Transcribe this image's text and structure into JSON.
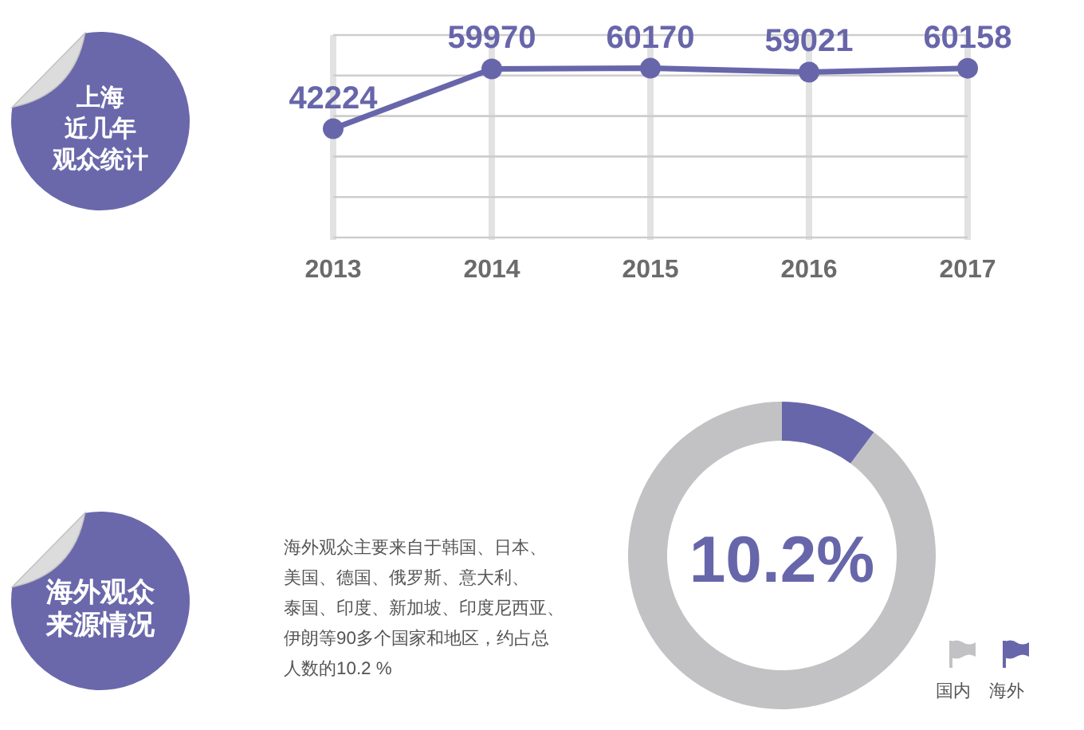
{
  "chart_data": [
    {
      "type": "line",
      "annotations": [
        "上海近几年观众统计"
      ],
      "categories": [
        "2013",
        "2014",
        "2015",
        "2016",
        "2017"
      ],
      "values": [
        42224,
        59970,
        60170,
        59021,
        60158
      ],
      "color": "#6866aa",
      "ylim": [
        10000,
        70000
      ],
      "yticks": [
        {
          "value": 10000,
          "label": null
        },
        {
          "value": 22000,
          "label": null
        },
        {
          "value": 34000,
          "label": null
        },
        {
          "value": 46000,
          "label": null
        },
        {
          "value": 58000,
          "label": null
        },
        {
          "value": 70000,
          "label": null
        }
      ],
      "tick_labels": "x",
      "grid": true,
      "marker": "circle",
      "data_labels": true
    },
    {
      "type": "donut",
      "annotations": [
        "海外观众来源情况",
        "海外观众主要来自于韩国、日本、美国、德国、俄罗斯、意大利、泰国、印度、新加坡、印度尼西亚、伊朗等90多个国家和地区，约占总人数的10.2 %",
        "10.2%"
      ],
      "categories": [
        "国内",
        "海外"
      ],
      "values": [
        89.8,
        10.2
      ],
      "colors": [
        "#c2c2c4",
        "#6866aa"
      ],
      "legend": "bottom right"
    }
  ]
}
